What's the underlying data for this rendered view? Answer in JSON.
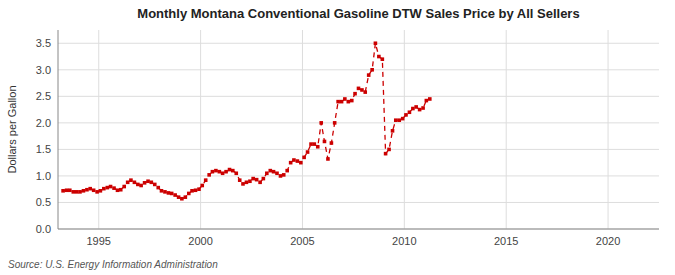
{
  "chart_data": {
    "type": "line",
    "title": "Monthly Montana Conventional Gasoline DTW Sales Price by All Sellers",
    "y_label": "Dollars per Gallon",
    "source": "Source: U.S. Energy Information Administration",
    "color": "#cc0000",
    "marker": "square",
    "line_style": "dashed",
    "grid": true,
    "xlim": [
      1993.0,
      2022.5
    ],
    "ylim": [
      0.0,
      3.75
    ],
    "xticks": [
      1995,
      2000,
      2005,
      2010,
      2015,
      2020
    ],
    "yticks": [
      {
        "value": 0.0,
        "label": "0.0"
      },
      0.5,
      {
        "value": 1.0,
        "label": "1.0"
      },
      1.5,
      {
        "value": 2.0,
        "label": "2.0"
      },
      2.5,
      {
        "value": 3.0,
        "label": "3.0"
      },
      3.5
    ],
    "x": [
      1993.25,
      1993.42,
      1993.58,
      1993.75,
      1993.92,
      1994.08,
      1994.25,
      1994.42,
      1994.58,
      1994.75,
      1994.92,
      1995.08,
      1995.25,
      1995.42,
      1995.58,
      1995.75,
      1995.92,
      1996.08,
      1996.25,
      1996.42,
      1996.58,
      1996.75,
      1996.92,
      1997.08,
      1997.25,
      1997.42,
      1997.58,
      1997.75,
      1997.92,
      1998.08,
      1998.25,
      1998.42,
      1998.58,
      1998.75,
      1998.92,
      1999.08,
      1999.25,
      1999.42,
      1999.58,
      1999.75,
      1999.92,
      2000.08,
      2000.25,
      2000.42,
      2000.58,
      2000.75,
      2000.92,
      2001.08,
      2001.25,
      2001.42,
      2001.58,
      2001.75,
      2001.92,
      2002.08,
      2002.25,
      2002.42,
      2002.58,
      2002.75,
      2002.92,
      2003.08,
      2003.25,
      2003.42,
      2003.58,
      2003.75,
      2003.92,
      2004.08,
      2004.25,
      2004.42,
      2004.58,
      2004.75,
      2004.92,
      2005.08,
      2005.25,
      2005.42,
      2005.58,
      2005.75,
      2005.92,
      2006.08,
      2006.25,
      2006.42,
      2006.58,
      2006.75,
      2006.92,
      2007.08,
      2007.25,
      2007.42,
      2007.58,
      2007.75,
      2007.92,
      2008.08,
      2008.25,
      2008.42,
      2008.58,
      2008.75,
      2008.92,
      2009.08,
      2009.25,
      2009.42,
      2009.58,
      2009.75,
      2009.92,
      2010.08,
      2010.25,
      2010.42,
      2010.58,
      2010.75,
      2010.92,
      2011.08,
      2011.25
    ],
    "values": [
      0.72,
      0.73,
      0.73,
      0.7,
      0.7,
      0.7,
      0.72,
      0.74,
      0.76,
      0.73,
      0.7,
      0.72,
      0.76,
      0.78,
      0.8,
      0.77,
      0.73,
      0.74,
      0.8,
      0.88,
      0.92,
      0.88,
      0.84,
      0.82,
      0.87,
      0.9,
      0.88,
      0.84,
      0.78,
      0.72,
      0.7,
      0.68,
      0.67,
      0.64,
      0.6,
      0.57,
      0.6,
      0.67,
      0.72,
      0.73,
      0.75,
      0.82,
      0.92,
      1.02,
      1.08,
      1.1,
      1.08,
      1.05,
      1.08,
      1.12,
      1.1,
      1.05,
      0.92,
      0.85,
      0.88,
      0.9,
      0.95,
      0.93,
      0.88,
      0.95,
      1.05,
      1.1,
      1.08,
      1.05,
      1.0,
      1.02,
      1.1,
      1.25,
      1.3,
      1.28,
      1.25,
      1.35,
      1.45,
      1.6,
      1.6,
      1.55,
      2.0,
      1.65,
      1.32,
      1.62,
      2.0,
      2.4,
      2.4,
      2.45,
      2.4,
      2.42,
      2.55,
      2.65,
      2.62,
      2.58,
      2.9,
      3.0,
      3.5,
      3.25,
      3.2,
      1.42,
      1.5,
      1.85,
      2.05,
      2.05,
      2.08,
      2.15,
      2.2,
      2.27,
      2.3,
      2.25,
      2.28,
      2.42,
      2.45
    ]
  }
}
